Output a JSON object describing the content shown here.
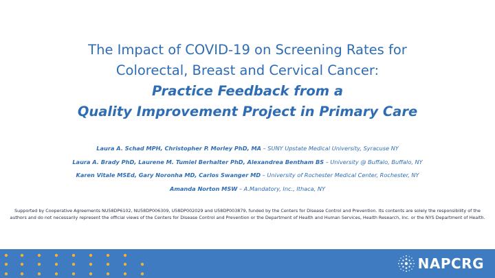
{
  "title": {
    "line1": "The Impact of COVID-19 on Screening Rates for",
    "line2": "Colorectal, Breast and Cervical Cancer:",
    "line3": "Practice Feedback from a",
    "line4": "Quality Improvement Project in Primary Care"
  },
  "authors": [
    {
      "names": "Laura A. Schad MPH, Christopher P. Morley PhD, MA",
      "affiliation": " – SUNY Upstate Medical University, Syracuse NY"
    },
    {
      "names": "Laura A. Brady PhD, Laurene M. Tumiel Berhalter PhD, Alexandrea Bentham BS",
      "affiliation": " – University @ Buffalo, Buffalo, NY"
    },
    {
      "names": "Karen Vitale MSEd, Gary Noronha MD, Carlos Swanger MD",
      "affiliation": " – University of Rochester Medical Center, Rochester, NY"
    },
    {
      "names": "Amanda Norton MSW",
      "affiliation": " – A.Mandatory, Inc., Ithaca, NY"
    }
  ],
  "support_text": "Supported by Cooperative Agreements NU58DP6102, NU58DP006309, U58DP002029 and U58DP003879, funded by the Centers for Disease Control and Prevention. Its contents are solely the responsibility of the authors and do not necessarily represent the official views of the Centers for Disease Control and Prevention or the Department of Health and Human Services, Health Research, Inc.  or the NYS Department of Health.",
  "logo": {
    "text": "NAPCRG",
    "icon": "napcrg-starburst-icon"
  },
  "colors": {
    "title": "#2e6cb4",
    "footer": "#3e7bc1",
    "dot": "#f2b233"
  }
}
